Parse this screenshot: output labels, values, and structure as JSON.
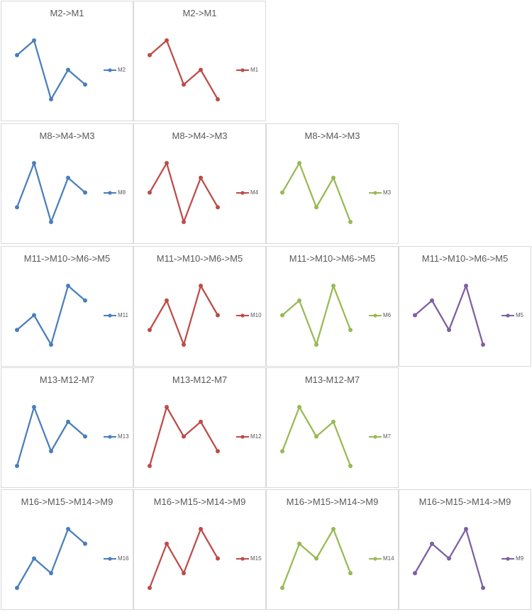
{
  "colors": {
    "blue": "#4a7ebb",
    "red": "#be4b48",
    "green": "#98b954",
    "purple": "#7d60a0"
  },
  "chart_data": [
    {
      "type": "line",
      "title": "M2->M1",
      "series": [
        {
          "name": "M2",
          "color": "blue",
          "values": [
            3,
            4,
            0,
            2,
            1
          ]
        }
      ]
    },
    {
      "type": "line",
      "title": "M2->M1",
      "series": [
        {
          "name": "M1",
          "color": "red",
          "values": [
            3,
            4,
            1,
            2,
            0
          ]
        }
      ]
    },
    {
      "type": "line",
      "title": "M8->M4->M3",
      "series": [
        {
          "name": "M8",
          "color": "blue",
          "values": [
            1,
            4,
            0,
            3,
            2
          ]
        }
      ]
    },
    {
      "type": "line",
      "title": "M8->M4->M3",
      "series": [
        {
          "name": "M4",
          "color": "red",
          "values": [
            2,
            4,
            0,
            3,
            1
          ]
        }
      ]
    },
    {
      "type": "line",
      "title": "M8->M4->M3",
      "series": [
        {
          "name": "M3",
          "color": "green",
          "values": [
            2,
            4,
            1,
            3,
            0
          ]
        }
      ]
    },
    {
      "type": "line",
      "title": "M11->M10->M6->M5",
      "series": [
        {
          "name": "M11",
          "color": "blue",
          "values": [
            1,
            2,
            0,
            4,
            3
          ]
        }
      ]
    },
    {
      "type": "line",
      "title": "M11->M10->M6->M5",
      "series": [
        {
          "name": "M10",
          "color": "red",
          "values": [
            1,
            3,
            0,
            4,
            2
          ]
        }
      ]
    },
    {
      "type": "line",
      "title": "M11->M10->M6->M5",
      "series": [
        {
          "name": "M6",
          "color": "green",
          "values": [
            2,
            3,
            0,
            4,
            1
          ]
        }
      ]
    },
    {
      "type": "line",
      "title": "M11->M10->M6->M5",
      "series": [
        {
          "name": "M5",
          "color": "purple",
          "values": [
            2,
            3,
            1,
            4,
            0
          ]
        }
      ]
    },
    {
      "type": "line",
      "title": "M13-M12-M7",
      "series": [
        {
          "name": "M13",
          "color": "blue",
          "values": [
            0,
            4,
            1,
            3,
            2
          ]
        }
      ]
    },
    {
      "type": "line",
      "title": "M13-M12-M7",
      "series": [
        {
          "name": "M12",
          "color": "red",
          "values": [
            0,
            4,
            2,
            3,
            1
          ]
        }
      ]
    },
    {
      "type": "line",
      "title": "M13-M12-M7",
      "series": [
        {
          "name": "M7",
          "color": "green",
          "values": [
            1,
            4,
            2,
            3,
            0
          ]
        }
      ]
    },
    {
      "type": "line",
      "title": "M16->M15->M14->M9",
      "series": [
        {
          "name": "M16",
          "color": "blue",
          "values": [
            0,
            2,
            1,
            4,
            3
          ]
        }
      ]
    },
    {
      "type": "line",
      "title": "M16->M15->M14->M9",
      "series": [
        {
          "name": "M15",
          "color": "red",
          "values": [
            0,
            3,
            1,
            4,
            2
          ]
        }
      ]
    },
    {
      "type": "line",
      "title": "M16->M15->M14->M9",
      "series": [
        {
          "name": "M14",
          "color": "green",
          "values": [
            0,
            3,
            2,
            4,
            1
          ]
        }
      ]
    },
    {
      "type": "line",
      "title": "M16->M15->M14->M9",
      "series": [
        {
          "name": "M9",
          "color": "purple",
          "values": [
            1,
            3,
            2,
            4,
            0
          ]
        }
      ]
    }
  ]
}
